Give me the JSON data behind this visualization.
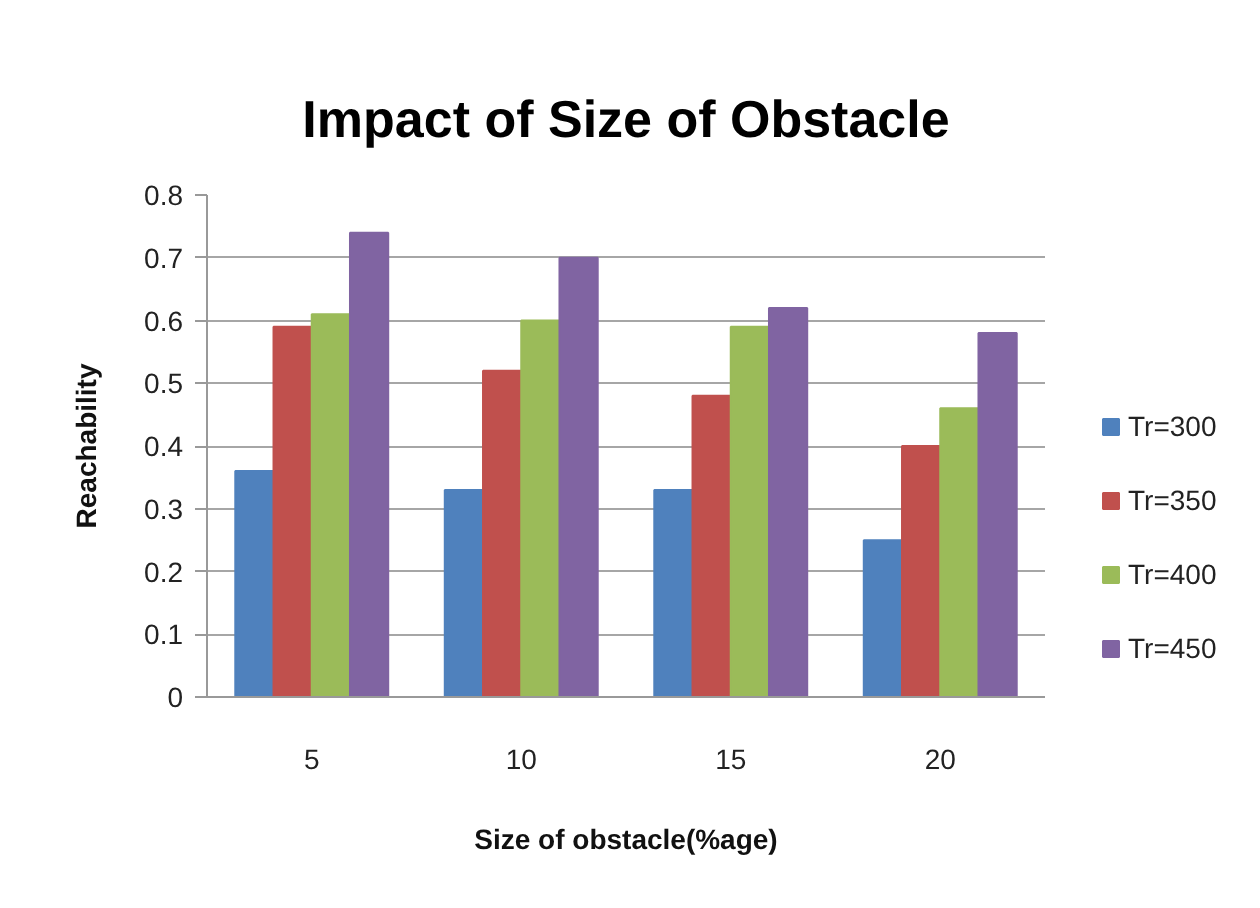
{
  "chart_data": {
    "type": "bar",
    "title": "Impact of Size of Obstacle",
    "xlabel": "Size of obstacle(%age)",
    "ylabel": "Reachability",
    "categories": [
      "5",
      "10",
      "15",
      "20"
    ],
    "series": [
      {
        "name": "Tr=300",
        "color": "#4f81bd",
        "values": [
          0.36,
          0.33,
          0.33,
          0.25
        ]
      },
      {
        "name": "Tr=350",
        "color": "#c0504d",
        "values": [
          0.59,
          0.52,
          0.48,
          0.4
        ]
      },
      {
        "name": "Tr=400",
        "color": "#9bbb59",
        "values": [
          0.61,
          0.6,
          0.59,
          0.46
        ]
      },
      {
        "name": "Tr=450",
        "color": "#8064a2",
        "values": [
          0.74,
          0.7,
          0.62,
          0.58
        ]
      }
    ],
    "ylim": [
      0,
      0.8
    ],
    "yticks": [
      0,
      0.1,
      0.2,
      0.3,
      0.4,
      0.5,
      0.6,
      0.7,
      0.8
    ],
    "grid": "y",
    "legend": "right"
  }
}
